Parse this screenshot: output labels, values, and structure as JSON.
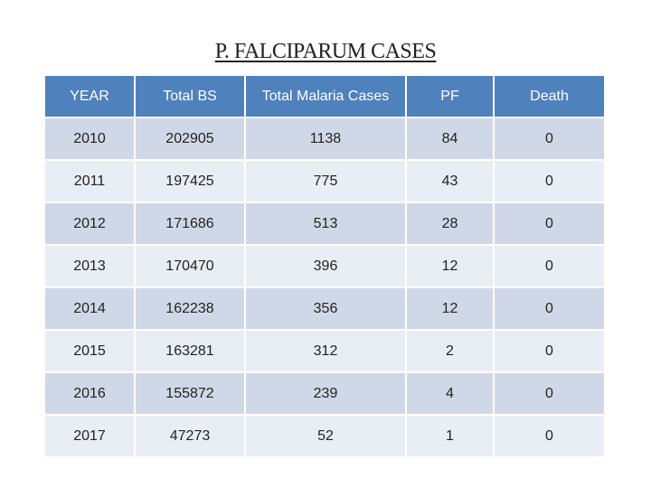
{
  "header": {
    "title": "P. FALCIPARUM CASES"
  },
  "table": {
    "columns": [
      "YEAR",
      "Total BS",
      "Total Malaria Cases",
      "PF",
      "Death"
    ],
    "rows": [
      [
        2010,
        202905,
        1138,
        84,
        0
      ],
      [
        2011,
        197425,
        775,
        43,
        0
      ],
      [
        2012,
        171686,
        513,
        28,
        0
      ],
      [
        2013,
        170470,
        396,
        12,
        0
      ],
      [
        2014,
        162238,
        356,
        12,
        0
      ],
      [
        2015,
        163281,
        312,
        2,
        0
      ],
      [
        2016,
        155872,
        239,
        4,
        0
      ],
      [
        2017,
        47273,
        52,
        1,
        0
      ]
    ]
  }
}
